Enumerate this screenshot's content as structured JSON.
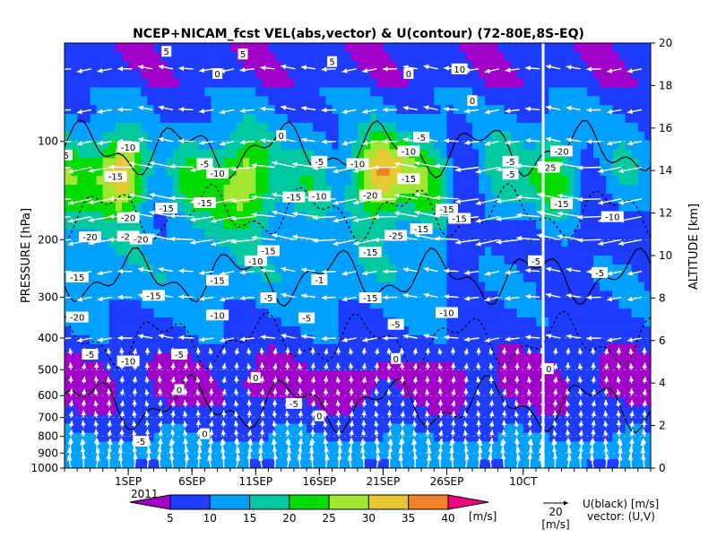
{
  "chart_data": {
    "type": "heatmap",
    "title": "NCEP+NICAM_fcst VEL(abs,vector) & U(contour)  (72-80E,8S-EQ)",
    "xlabel": "2011",
    "ylabel": "PRESSURE [hPa]",
    "y2label": "ALTITUDE [km]",
    "x_ticks": [
      "1SEP",
      "6SEP",
      "11SEP",
      "16SEP",
      "21SEP",
      "26SEP",
      "10CT"
    ],
    "x_range": [
      "27AUG",
      "12OCT"
    ],
    "y_ticks": [
      "100",
      "200",
      "300",
      "400",
      "500",
      "600",
      "700",
      "800",
      "900",
      "1000"
    ],
    "y_range": [
      1000,
      50
    ],
    "y2_ticks": [
      0,
      2,
      4,
      6,
      8,
      10,
      12,
      14,
      16,
      18,
      20
    ],
    "y2_range": [
      0,
      20
    ],
    "forecast_start": "26SEP",
    "colorbar": {
      "levels": [
        "5",
        "10",
        "15",
        "20",
        "25",
        "30",
        "35",
        "40"
      ],
      "unit": "[m/s]",
      "colors": [
        "#a000c8",
        "#1e3cff",
        "#00a0ff",
        "#00c8a0",
        "#00dc00",
        "#a0e632",
        "#e6c832",
        "#f08228",
        "#f00082"
      ]
    },
    "vector_legend": {
      "value": "20",
      "unit": "[m/s]"
    },
    "legend_text": [
      "U(black) [m/s]",
      "vector: (U,V)"
    ],
    "contour_labels": [
      {
        "x": "27AUG",
        "p": 110,
        "text": "-5"
      },
      {
        "x": "1SEP",
        "p": 104,
        "text": "-10"
      },
      {
        "x": "4SEP",
        "p": 53,
        "text": "5"
      },
      {
        "x": "8SEP",
        "p": 62,
        "text": "0"
      },
      {
        "x": "10SEP",
        "p": 54,
        "text": "5"
      },
      {
        "x": "13SEP",
        "p": 96,
        "text": "0"
      },
      {
        "x": "17SEP",
        "p": 57,
        "text": "5"
      },
      {
        "x": "23SEP",
        "p": 62,
        "text": "0"
      },
      {
        "x": "24SEP",
        "p": 97,
        "text": "-5"
      },
      {
        "x": "23SEP",
        "p": 107,
        "text": "-10"
      },
      {
        "x": "27SEP",
        "p": 60,
        "text": "10"
      },
      {
        "x": "28SEP",
        "p": 75,
        "text": "0"
      },
      {
        "x": "1OCT",
        "p": 115,
        "text": "-5"
      },
      {
        "x": "1OCT",
        "p": 126,
        "text": "-5"
      },
      {
        "x": "5OCT",
        "p": 107,
        "text": "-20"
      },
      {
        "x": "4OCT",
        "p": 120,
        "text": "-25"
      },
      {
        "x": "7SEP",
        "p": 117,
        "text": "-5"
      },
      {
        "x": "8SEP",
        "p": 125,
        "text": "-10"
      },
      {
        "x": "16SEP",
        "p": 115,
        "text": "-5"
      },
      {
        "x": "19SEP",
        "p": 117,
        "text": "-10"
      },
      {
        "x": "31AUG",
        "p": 128,
        "text": "-15"
      },
      {
        "x": "14SEP",
        "p": 148,
        "text": "-15"
      },
      {
        "x": "16SEP",
        "p": 147,
        "text": "-10"
      },
      {
        "x": "20SEP",
        "p": 146,
        "text": "-20"
      },
      {
        "x": "23SEP",
        "p": 130,
        "text": "-15"
      },
      {
        "x": "7SEP",
        "p": 154,
        "text": "-15"
      },
      {
        "x": "4SEP",
        "p": 160,
        "text": "-15"
      },
      {
        "x": "1SEP",
        "p": 171,
        "text": "-20"
      },
      {
        "x": "26SEP",
        "p": 161,
        "text": "-15"
      },
      {
        "x": "5OCT",
        "p": 155,
        "text": "-15"
      },
      {
        "x": "9OCT",
        "p": 170,
        "text": "-10"
      },
      {
        "x": "27SEP",
        "p": 172,
        "text": "-15"
      },
      {
        "x": "29AUG",
        "p": 196,
        "text": "-20"
      },
      {
        "x": "1SEP",
        "p": 195,
        "text": "-25"
      },
      {
        "x": "2SEP",
        "p": 199,
        "text": "-20"
      },
      {
        "x": "22SEP",
        "p": 194,
        "text": "-25"
      },
      {
        "x": "24SEP",
        "p": 185,
        "text": "-15"
      },
      {
        "x": "12SEP",
        "p": 216,
        "text": "-15"
      },
      {
        "x": "20SEP",
        "p": 218,
        "text": "-15"
      },
      {
        "x": "11SEP",
        "p": 232,
        "text": "-10"
      },
      {
        "x": "3OCT",
        "p": 232,
        "text": "-5"
      },
      {
        "x": "8OCT",
        "p": 252,
        "text": "-5"
      },
      {
        "x": "28AUG",
        "p": 260,
        "text": "-15"
      },
      {
        "x": "8SEP",
        "p": 266,
        "text": "-15"
      },
      {
        "x": "16SEP",
        "p": 265,
        "text": "-1"
      },
      {
        "x": "3SEP",
        "p": 296,
        "text": "-15"
      },
      {
        "x": "12SEP",
        "p": 301,
        "text": "-5"
      },
      {
        "x": "20SEP",
        "p": 301,
        "text": "-15"
      },
      {
        "x": "26SEP",
        "p": 334,
        "text": "-10"
      },
      {
        "x": "28AUG",
        "p": 345,
        "text": "-20"
      },
      {
        "x": "8SEP",
        "p": 340,
        "text": "-10"
      },
      {
        "x": "15SEP",
        "p": 347,
        "text": "-5"
      },
      {
        "x": "22SEP",
        "p": 363,
        "text": "-5"
      },
      {
        "x": "29AUG",
        "p": 448,
        "text": "-5"
      },
      {
        "x": "1SEP",
        "p": 470,
        "text": "-10"
      },
      {
        "x": "5SEP",
        "p": 448,
        "text": "-5"
      },
      {
        "x": "22SEP",
        "p": 462,
        "text": "0"
      },
      {
        "x": "4OCT",
        "p": 496,
        "text": "0"
      },
      {
        "x": "11SEP",
        "p": 528,
        "text": "0"
      },
      {
        "x": "5SEP",
        "p": 575,
        "text": "0"
      },
      {
        "x": "14SEP",
        "p": 634,
        "text": "-5"
      },
      {
        "x": "16SEP",
        "p": 692,
        "text": "0"
      },
      {
        "x": "7SEP",
        "p": 785,
        "text": "0"
      },
      {
        "x": "2SEP",
        "p": 828,
        "text": "-5"
      }
    ]
  }
}
